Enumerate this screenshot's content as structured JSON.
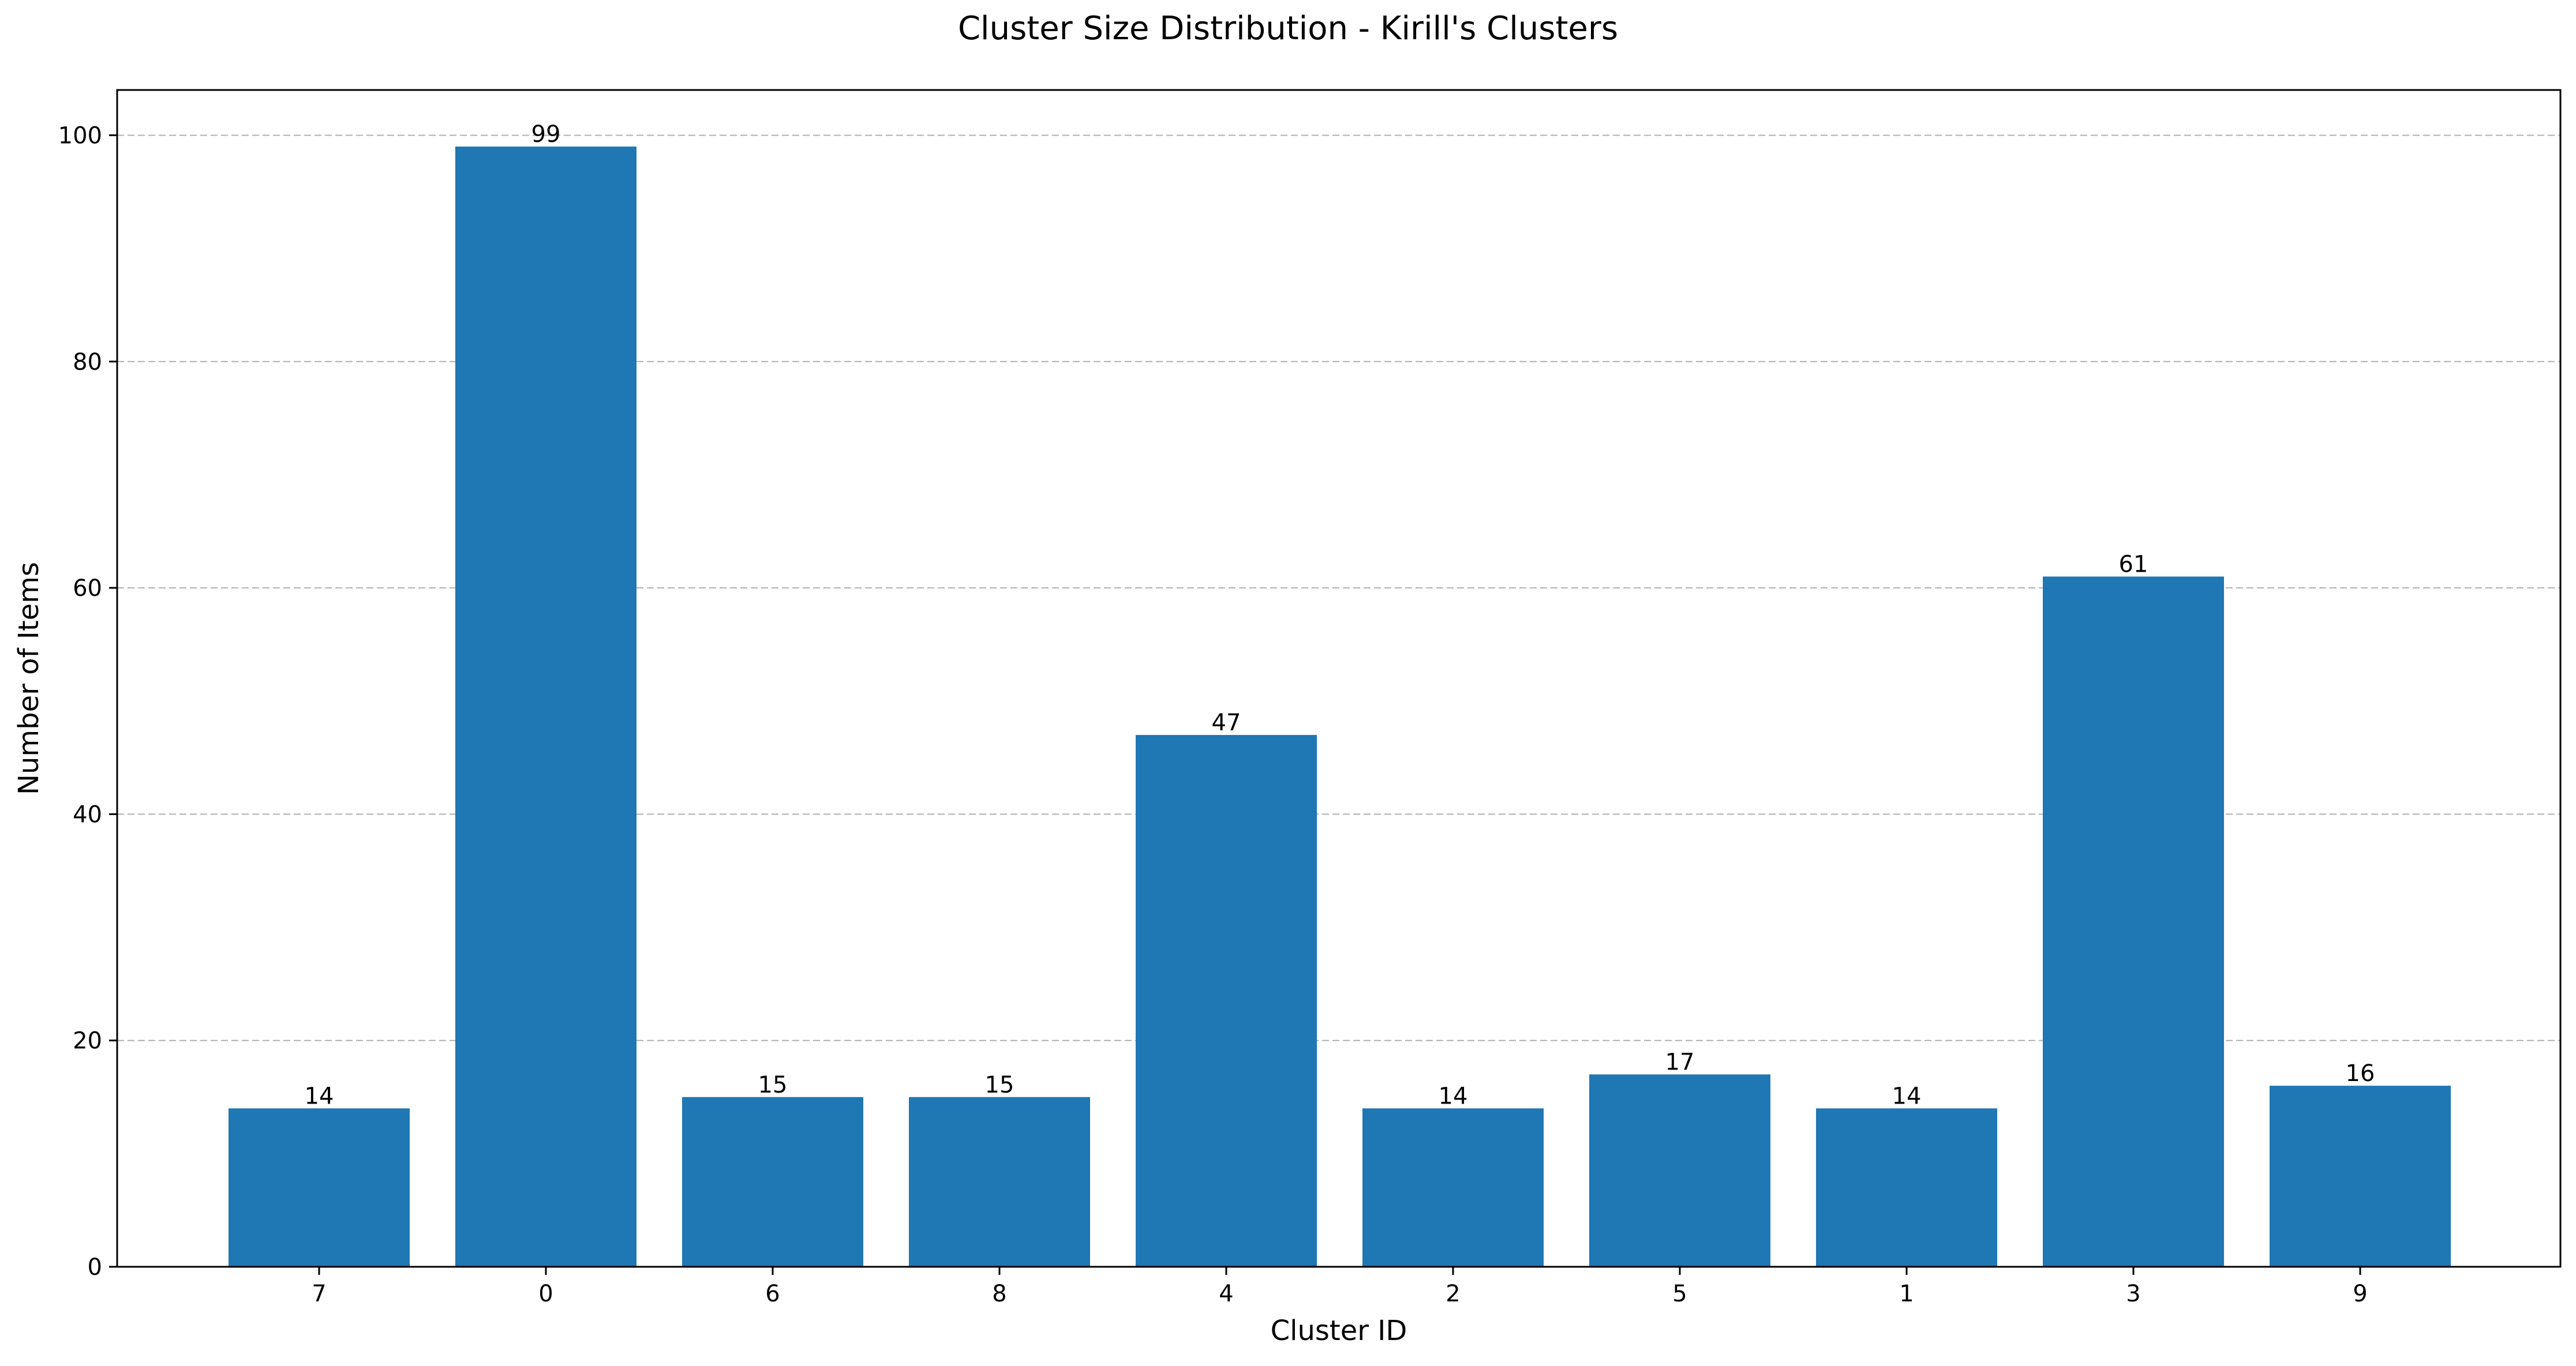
{
  "chart_data": {
    "type": "bar",
    "title": "Cluster Size Distribution - Kirill's Clusters",
    "xlabel": "Cluster ID",
    "ylabel": "Number of Items",
    "categories": [
      "7",
      "0",
      "6",
      "8",
      "4",
      "2",
      "5",
      "1",
      "3",
      "9"
    ],
    "values": [
      14,
      99,
      15,
      15,
      47,
      14,
      17,
      14,
      61,
      16
    ],
    "ylim": [
      0,
      104
    ],
    "yticks": [
      0,
      20,
      40,
      60,
      80,
      100
    ],
    "grid": "y-dashed",
    "legend": "none",
    "bar_color": "#1f77b4"
  }
}
